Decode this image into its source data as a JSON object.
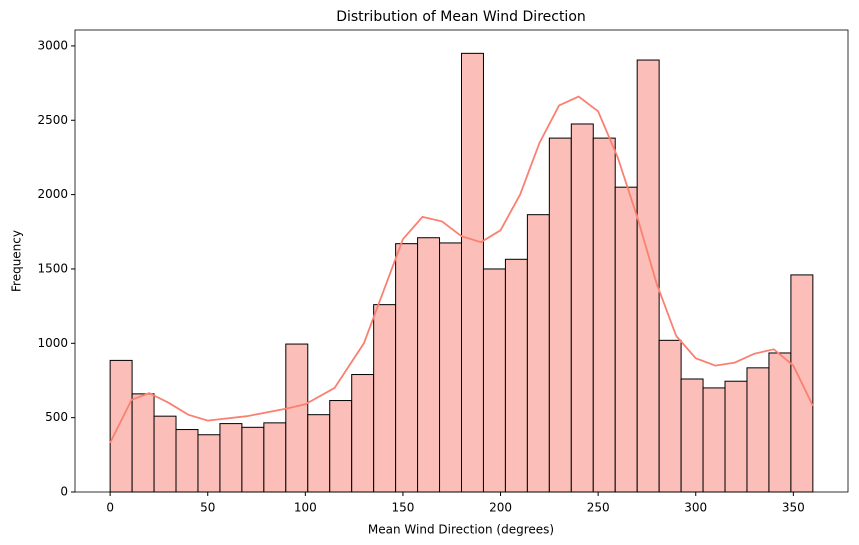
{
  "chart_data": {
    "type": "histogram",
    "title": "Distribution of Mean Wind Direction",
    "x_label": "Mean Wind Direction (degrees)",
    "y_label": "Frequency",
    "bins": [
      0,
      11.25,
      22.5,
      33.75,
      45,
      56.25,
      67.5,
      78.75,
      90,
      101.25,
      112.5,
      123.75,
      135,
      146.25,
      157.5,
      168.75,
      180,
      191.25,
      202.5,
      213.75,
      225,
      236.25,
      247.5,
      258.75,
      270,
      281.25,
      292.5,
      303.75,
      315,
      326.25,
      337.5,
      348.75,
      360
    ],
    "values": [
      885,
      660,
      510,
      420,
      385,
      460,
      435,
      465,
      995,
      520,
      615,
      790,
      1260,
      1670,
      1710,
      1675,
      2950,
      1500,
      1565,
      1865,
      2380,
      2475,
      2380,
      2050,
      2905,
      1020,
      760,
      700,
      745,
      835,
      935,
      1460
    ],
    "color": "#fbbeb8",
    "edge_color": "#000000",
    "kde": {
      "color": "#fa8072",
      "x": [
        0,
        11,
        20,
        30,
        40,
        50,
        70,
        90,
        100,
        115,
        130,
        140,
        150,
        160,
        170,
        180,
        190,
        200,
        210,
        220,
        230,
        240,
        250,
        260,
        270,
        280,
        290,
        300,
        310,
        320,
        330,
        340,
        350,
        360
      ],
      "values": [
        330,
        620,
        665,
        600,
        520,
        480,
        510,
        560,
        590,
        700,
        1000,
        1350,
        1700,
        1850,
        1820,
        1720,
        1680,
        1760,
        2000,
        2350,
        2600,
        2660,
        2560,
        2250,
        1850,
        1400,
        1050,
        900,
        850,
        870,
        930,
        960,
        850,
        580
      ]
    },
    "xlim": [
      -18,
      378
    ],
    "ylim": [
      0,
      3107
    ],
    "xticks": [
      0,
      50,
      100,
      150,
      200,
      250,
      300,
      350
    ],
    "yticks": [
      0,
      500,
      1000,
      1500,
      2000,
      2500,
      3000
    ],
    "grid": false
  }
}
